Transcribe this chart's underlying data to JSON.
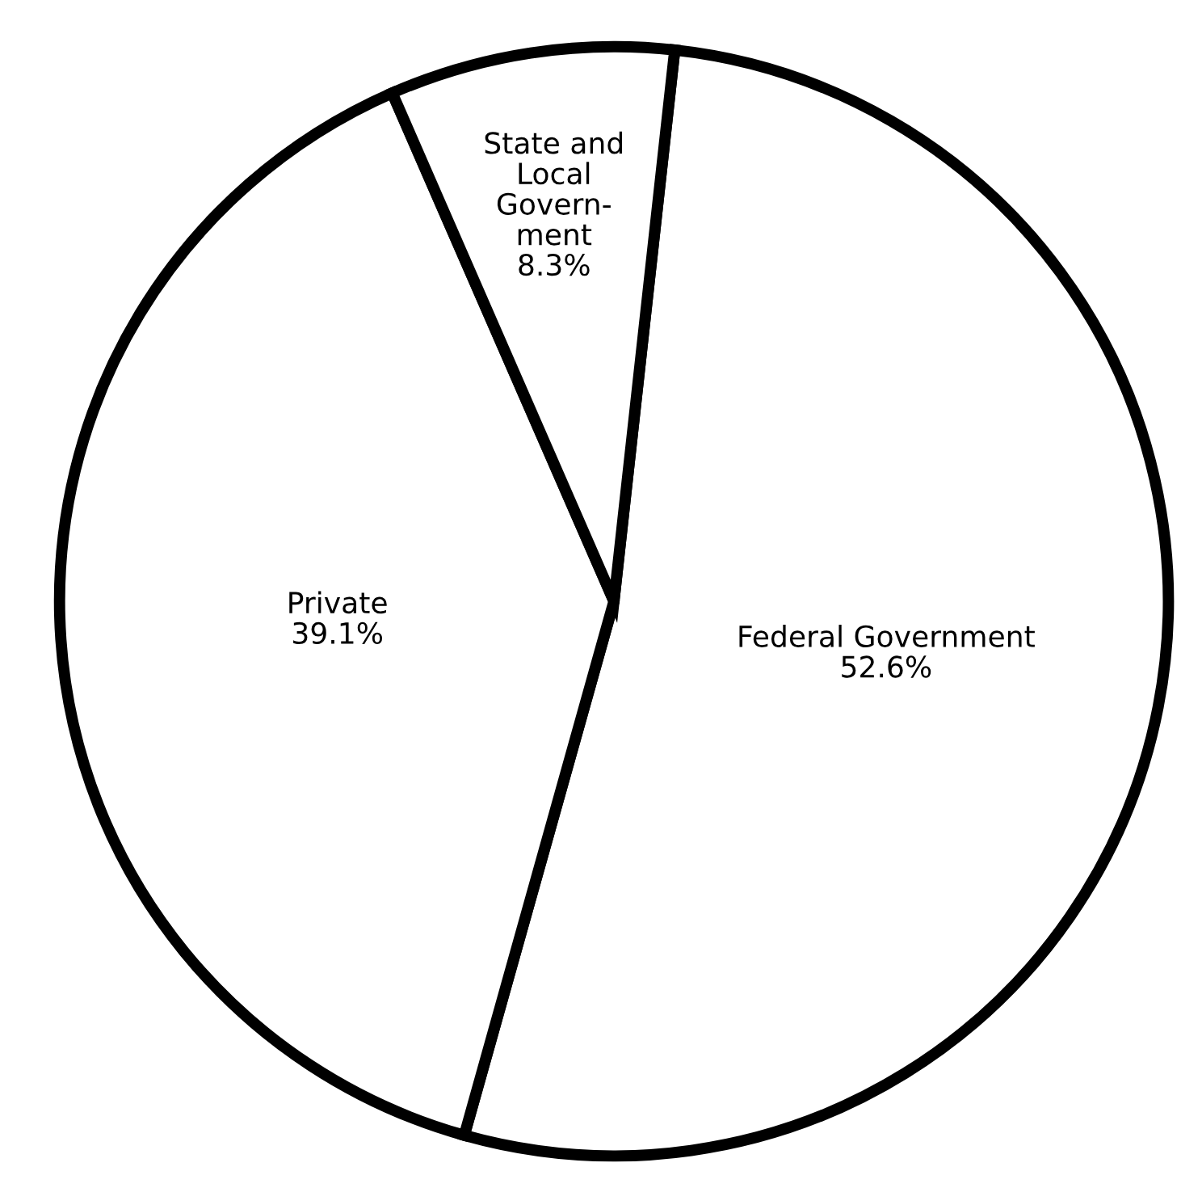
{
  "chart_data": {
    "type": "pie",
    "categories": [
      "Federal Government",
      "Private",
      "State and\nLocal\nGovern-\nment"
    ],
    "values": [
      52.6,
      39.1,
      8.3
    ],
    "value_labels": [
      "52.6%",
      "39.1%",
      "8.3%"
    ],
    "colors": [
      "#ffffff",
      "#ffffff",
      "#ffffff"
    ]
  }
}
